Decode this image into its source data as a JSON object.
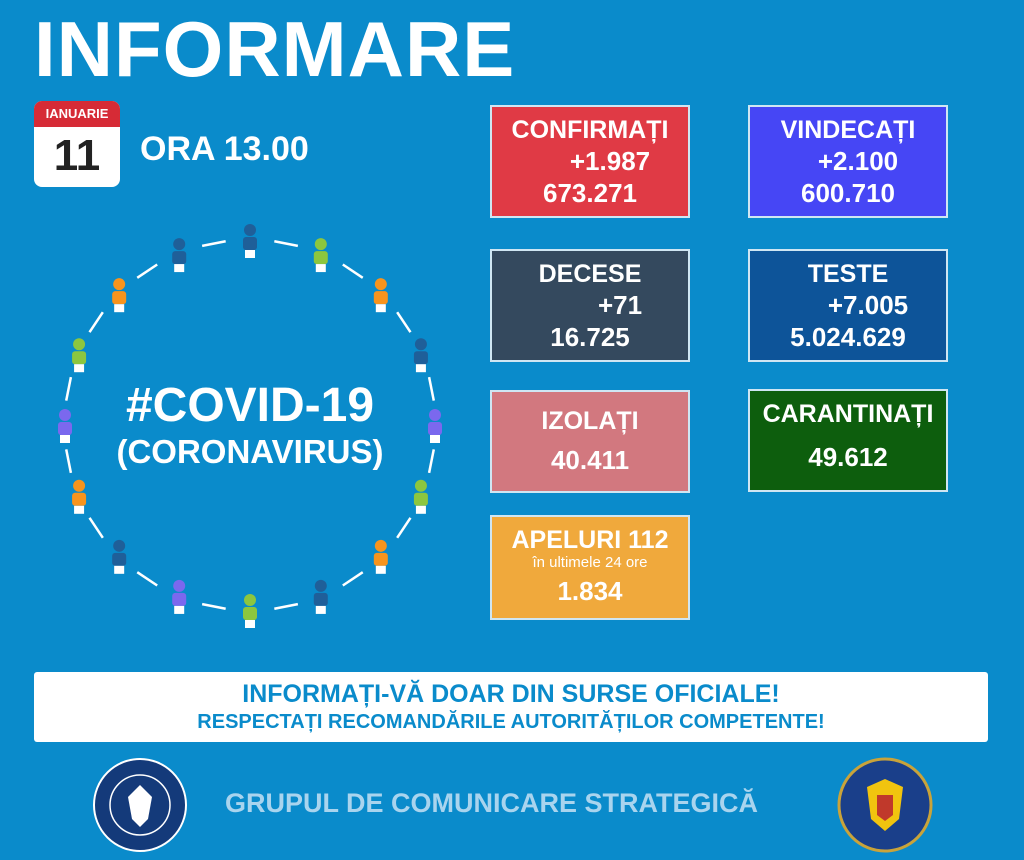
{
  "header": {
    "title": "INFORMARE",
    "month": "IANUARIE",
    "day": "11",
    "time": "ORA 13.00"
  },
  "center": {
    "hashtag": "#COVID-19",
    "subtitle": "(CORONAVIRUS)"
  },
  "stats": {
    "confirmati": {
      "label": "CONFIRMAȚI",
      "delta": "+1.987",
      "total": "673.271",
      "color": "#e03a45"
    },
    "vindecati": {
      "label": "VINDECAȚI",
      "delta": "+2.100",
      "total": "600.710",
      "color": "#4646f5"
    },
    "decese": {
      "label": "DECESE",
      "delta": "+71",
      "total": "16.725",
      "color": "#34495e"
    },
    "teste": {
      "label": "TESTE",
      "delta": "+7.005",
      "total": "5.024.629",
      "color": "#0d5499"
    },
    "izolati": {
      "label": "IZOLAȚI",
      "total": "40.411",
      "color": "#d2787f"
    },
    "carantinati": {
      "label": "CARANTINAȚI",
      "total": "49.612",
      "color": "#0d5e0d"
    },
    "apeluri": {
      "label": "APELURI 112",
      "sub": "în ultimele 24 ore",
      "total": "1.834",
      "color": "#f0a93c"
    }
  },
  "banner": {
    "line1": "INFORMAȚI-VĂ DOAR DIN SURSE OFICIALE!",
    "line2": "RESPECTAȚI RECOMANDĂRILE AUTORITĂȚILOR COMPETENTE!"
  },
  "footer": {
    "text": "GRUPUL DE COMUNICARE STRATEGICĂ",
    "logo_left": "GUVERNUL ROMÂNIEI",
    "logo_right": "DEPARTAMENTUL PENTRU SITUAȚII DE URGENȚĂ M.A.I."
  }
}
